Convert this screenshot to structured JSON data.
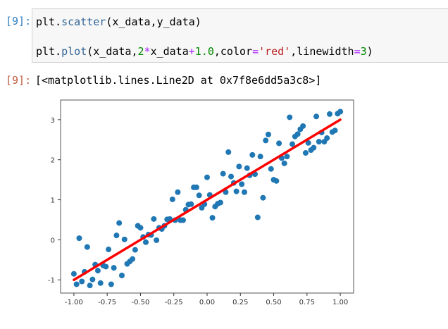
{
  "cell": {
    "input_prompt": "[9]:",
    "output_prompt": "[9]:",
    "code_lines": [
      [
        {
          "t": "plt.",
          "c": "#000000"
        },
        {
          "t": "scatter",
          "c": "#336699"
        },
        {
          "t": "(x_data,y_data)",
          "c": "#000000"
        }
      ],
      [
        {
          "t": "plt.",
          "c": "#000000"
        },
        {
          "t": "plot",
          "c": "#336699"
        },
        {
          "t": "(x_data,",
          "c": "#000000"
        },
        {
          "t": "2",
          "c": "#008800"
        },
        {
          "t": "*",
          "c": "#aa22ff"
        },
        {
          "t": "x_data",
          "c": "#000000"
        },
        {
          "t": "+",
          "c": "#aa22ff"
        },
        {
          "t": "1.0",
          "c": "#008800"
        },
        {
          "t": ",color",
          "c": "#000000"
        },
        {
          "t": "=",
          "c": "#aa22ff"
        },
        {
          "t": "'red'",
          "c": "#ba2121"
        },
        {
          "t": ",linewidth",
          "c": "#000000"
        },
        {
          "t": "=",
          "c": "#aa22ff"
        },
        {
          "t": "3",
          "c": "#008800"
        },
        {
          "t": ")",
          "c": "#000000"
        }
      ]
    ],
    "output_text": "[<matplotlib.lines.Line2D at 0x7f8e6dd5a3c8>]"
  },
  "chart_data": {
    "type": "scatter",
    "title": "",
    "xlabel": "",
    "ylabel": "",
    "xlim": [
      -1.1,
      1.1
    ],
    "ylim": [
      -1.33,
      3.49
    ],
    "grid": false,
    "xticks": [
      "-1.00",
      "-0.75",
      "-0.50",
      "-0.25",
      "0.00",
      "0.25",
      "0.50",
      "0.75",
      "1.00"
    ],
    "xtick_values": [
      -1,
      -0.75,
      -0.5,
      -0.25,
      0,
      0.25,
      0.5,
      0.75,
      1
    ],
    "yticks": [
      "-1",
      "0",
      "1",
      "2",
      "3"
    ],
    "ytick_values": [
      -1,
      0,
      1,
      2,
      3
    ],
    "scatter_color": "#1f77b4",
    "line_color": "#ff0000",
    "points": {
      "x": [
        -1.0,
        -0.98,
        -0.96,
        -0.94,
        -0.92,
        -0.9,
        -0.88,
        -0.86,
        -0.84,
        -0.82,
        -0.8,
        -0.78,
        -0.76,
        -0.74,
        -0.72,
        -0.7,
        -0.68,
        -0.66,
        -0.64,
        -0.62,
        -0.6,
        -0.58,
        -0.56,
        -0.54,
        -0.52,
        -0.5,
        -0.48,
        -0.46,
        -0.44,
        -0.42,
        -0.4,
        -0.38,
        -0.36,
        -0.34,
        -0.32,
        -0.3,
        -0.28,
        -0.26,
        -0.24,
        -0.22,
        -0.2,
        -0.18,
        -0.16,
        -0.14,
        -0.12,
        -0.1,
        -0.08,
        -0.06,
        -0.04,
        -0.02,
        0.0,
        0.02,
        0.04,
        0.06,
        0.08,
        0.1,
        0.12,
        0.14,
        0.16,
        0.18,
        0.2,
        0.22,
        0.24,
        0.26,
        0.28,
        0.3,
        0.32,
        0.34,
        0.36,
        0.38,
        0.4,
        0.42,
        0.44,
        0.46,
        0.48,
        0.5,
        0.52,
        0.54,
        0.56,
        0.58,
        0.6,
        0.62,
        0.64,
        0.66,
        0.68,
        0.7,
        0.72,
        0.74,
        0.76,
        0.78,
        0.8,
        0.82,
        0.84,
        0.86,
        0.88,
        0.9,
        0.92,
        0.94,
        0.96,
        0.98,
        1.0
      ],
      "y": [
        -0.85,
        -1.11,
        0.04,
        -1.04,
        -0.8,
        -0.18,
        -1.14,
        -0.99,
        -0.62,
        -0.77,
        -1.08,
        -0.64,
        -0.67,
        -0.24,
        -1.11,
        -0.7,
        0.11,
        0.42,
        -0.89,
        0.01,
        -0.6,
        -0.54,
        -0.48,
        -0.25,
        0.35,
        0.3,
        0.07,
        -0.06,
        0.13,
        0.12,
        0.52,
        -0.01,
        0.3,
        0.27,
        0.35,
        0.51,
        0.52,
        1.01,
        0.49,
        1.19,
        0.49,
        0.49,
        0.75,
        0.88,
        0.89,
        1.31,
        1.31,
        1.11,
        0.8,
        0.89,
        1.56,
        1.12,
        0.55,
        0.83,
        0.9,
        0.93,
        1.65,
        1.19,
        2.19,
        1.58,
        1.42,
        1.21,
        1.83,
        1.39,
        1.19,
        1.79,
        1.61,
        2.12,
        1.64,
        0.56,
        2.08,
        1.05,
        2.48,
        2.63,
        1.77,
        1.5,
        1.47,
        2.41,
        2.04,
        1.91,
        2.08,
        3.06,
        2.39,
        2.58,
        2.64,
        2.76,
        2.84,
        2.17,
        2.42,
        2.24,
        2.3,
        3.08,
        2.45,
        2.68,
        2.45,
        2.54,
        3.14,
        2.69,
        2.73,
        3.15,
        3.2
      ]
    },
    "line": {
      "x": [
        -1,
        1
      ],
      "y": [
        -1,
        3
      ]
    }
  }
}
